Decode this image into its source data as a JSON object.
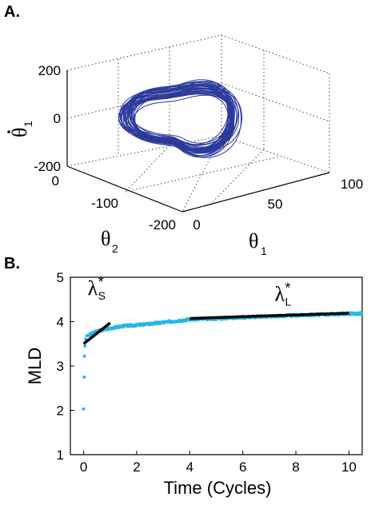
{
  "chart_data": [
    {
      "panel_label": "A.",
      "type": "line3d",
      "x_axis": {
        "label": "θ",
        "label_sub": "1",
        "ticks": [
          "0",
          "50",
          "100"
        ],
        "range": [
          0,
          100
        ]
      },
      "y_axis": {
        "label": "θ",
        "label_sub": "2",
        "ticks": [
          "0",
          "-100",
          "-200"
        ],
        "range": [
          -200,
          0
        ]
      },
      "z_axis": {
        "label": "θ",
        "label_sub": "1",
        "label_dot": true,
        "ticks": [
          "200",
          "0",
          "-200"
        ],
        "range": [
          -200,
          200
        ]
      },
      "grid": true,
      "series": [
        {
          "color": "#2b3a9a",
          "description_points": {
            "theta1_center": 55,
            "theta2_center": -100,
            "theta1dot_amplitude": 80
          }
        }
      ]
    },
    {
      "panel_label": "B.",
      "type": "scatter",
      "xlabel": "Time (Cycles)",
      "ylabel": "MLD",
      "xlim": [
        -0.5,
        10.5
      ],
      "ylim": [
        1,
        5
      ],
      "x_ticks": [
        "0",
        "2",
        "4",
        "6",
        "8",
        "10"
      ],
      "y_ticks": [
        "1",
        "2",
        "3",
        "4",
        "5"
      ],
      "marker_color": "#29b6e8",
      "early_points": [
        {
          "x": 0.0,
          "y": 2.03
        },
        {
          "x": 0.02,
          "y": 2.75
        },
        {
          "x": 0.03,
          "y": 3.22
        },
        {
          "x": 0.05,
          "y": 3.45
        },
        {
          "x": 0.08,
          "y": 3.6
        },
        {
          "x": 0.12,
          "y": 3.68
        }
      ],
      "curve_points": [
        {
          "x": 0.2,
          "y": 3.7
        },
        {
          "x": 0.5,
          "y": 3.78
        },
        {
          "x": 1.0,
          "y": 3.85
        },
        {
          "x": 1.5,
          "y": 3.9
        },
        {
          "x": 2.0,
          "y": 3.92
        },
        {
          "x": 3.0,
          "y": 3.98
        },
        {
          "x": 4.0,
          "y": 4.05
        },
        {
          "x": 5.0,
          "y": 4.07
        },
        {
          "x": 6.0,
          "y": 4.1
        },
        {
          "x": 7.0,
          "y": 4.12
        },
        {
          "x": 8.0,
          "y": 4.14
        },
        {
          "x": 9.0,
          "y": 4.16
        },
        {
          "x": 10.0,
          "y": 4.18
        },
        {
          "x": 10.5,
          "y": 4.18
        }
      ],
      "fits": [
        {
          "label": "λ",
          "label_sub": "S",
          "label_sup": "*",
          "color": "#000000",
          "x": [
            0.0,
            1.0
          ],
          "y": [
            3.5,
            3.97
          ],
          "label_pos": {
            "x": 0.15,
            "y": 4.6
          }
        },
        {
          "label": "λ",
          "label_sub": "L",
          "label_sup": "*",
          "color": "#000000",
          "x": [
            4.0,
            10.0
          ],
          "y": [
            4.07,
            4.19
          ],
          "label_pos": {
            "x": 7.2,
            "y": 4.47
          }
        }
      ]
    }
  ]
}
